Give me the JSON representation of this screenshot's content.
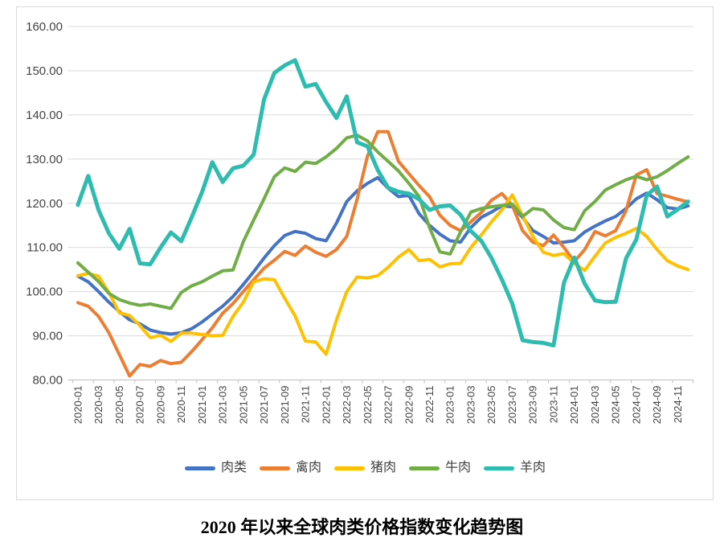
{
  "title": {
    "text": "2020 年以来全球肉类价格指数变化趋势图"
  },
  "axis_colors": {
    "gridline": "#d9d9d9",
    "axis_line": "#bfbfbf",
    "tick_label": "#444444"
  },
  "chart_data": {
    "type": "line",
    "title": "2020 年以来全球肉类价格指数变化趋势图",
    "xlabel": "",
    "ylabel": "",
    "ylim": [
      80,
      160
    ],
    "y_tick_step": 10,
    "y_tick_labels": [
      "80.00",
      "90.00",
      "100.00",
      "110.00",
      "120.00",
      "130.00",
      "140.00",
      "150.00",
      "160.00"
    ],
    "grid": true,
    "legend_position": "bottom",
    "x_label_every": 2,
    "categories": [
      "2020-01",
      "2020-02",
      "2020-03",
      "2020-04",
      "2020-05",
      "2020-06",
      "2020-07",
      "2020-08",
      "2020-09",
      "2020-10",
      "2020-11",
      "2020-12",
      "2021-01",
      "2021-02",
      "2021-03",
      "2021-04",
      "2021-05",
      "2021-06",
      "2021-07",
      "2021-08",
      "2021-09",
      "2021-10",
      "2021-11",
      "2021-12",
      "2022-01",
      "2022-02",
      "2022-03",
      "2022-04",
      "2022-05",
      "2022-06",
      "2022-07",
      "2022-08",
      "2022-09",
      "2022-10",
      "2022-11",
      "2022-12",
      "2023-01",
      "2023-02",
      "2023-03",
      "2023-04",
      "2023-05",
      "2023-06",
      "2023-07",
      "2023-08",
      "2023-09",
      "2023-10",
      "2023-11",
      "2023-12",
      "2024-01",
      "2024-02",
      "2024-03",
      "2024-04",
      "2024-05",
      "2024-06",
      "2024-07",
      "2024-08",
      "2024-09",
      "2024-10",
      "2024-11",
      "2024-12"
    ],
    "series": [
      {
        "name": "肉类",
        "color": "#4472c4",
        "stroke_width": 4,
        "values": [
          103.5,
          102.2,
          100.0,
          97.6,
          95.5,
          93.6,
          92.7,
          91.3,
          90.7,
          90.4,
          90.7,
          91.6,
          93.1,
          94.9,
          96.7,
          98.9,
          101.6,
          104.5,
          107.6,
          110.4,
          112.7,
          113.6,
          113.2,
          112.0,
          111.5,
          115.5,
          120.4,
          122.8,
          124.5,
          125.8,
          123.4,
          121.5,
          121.8,
          117.6,
          115.0,
          113.0,
          111.5,
          111.2,
          114.5,
          116.8,
          118.0,
          119.4,
          119.2,
          116.8,
          113.8,
          112.5,
          111.0,
          111.2,
          111.5,
          113.5,
          114.8,
          116.0,
          117.0,
          118.8,
          121.0,
          122.3,
          120.8,
          119.0,
          118.7,
          119.4
        ]
      },
      {
        "name": "禽肉",
        "color": "#ed7d31",
        "stroke_width": 4,
        "values": [
          97.5,
          96.7,
          94.4,
          90.7,
          85.8,
          80.9,
          83.5,
          83.1,
          84.4,
          83.7,
          84.0,
          86.4,
          89.1,
          91.8,
          95.1,
          97.3,
          100.0,
          102.7,
          105.3,
          107.1,
          109.1,
          108.2,
          110.3,
          108.9,
          108.0,
          109.5,
          112.5,
          120.9,
          130.7,
          136.2,
          136.2,
          129.5,
          126.7,
          124.0,
          121.5,
          117.3,
          115.0,
          113.8,
          115.8,
          117.9,
          120.7,
          122.2,
          119.5,
          113.8,
          111.2,
          110.4,
          112.8,
          110.0,
          106.8,
          109.5,
          113.6,
          112.6,
          113.8,
          118.3,
          126.4,
          127.6,
          122.2,
          121.6,
          120.9,
          120.3
        ]
      },
      {
        "name": "猪肉",
        "color": "#ffc000",
        "stroke_width": 4,
        "values": [
          103.6,
          104.1,
          103.5,
          99.8,
          95.2,
          94.6,
          92.3,
          89.6,
          90.1,
          88.7,
          90.6,
          90.6,
          90.3,
          90.0,
          90.1,
          94.4,
          97.6,
          102.2,
          102.9,
          102.7,
          98.5,
          94.5,
          88.8,
          88.6,
          85.8,
          93.6,
          100.0,
          103.3,
          103.1,
          103.6,
          105.5,
          107.8,
          109.5,
          107.0,
          107.3,
          105.6,
          106.3,
          106.4,
          110.0,
          112.8,
          115.8,
          118.5,
          121.9,
          117.2,
          112.5,
          108.9,
          108.2,
          108.6,
          106.4,
          104.8,
          108.0,
          111.0,
          112.3,
          113.2,
          114.3,
          112.5,
          109.5,
          107.0,
          105.8,
          105.0
        ]
      },
      {
        "name": "牛肉",
        "color": "#70ad47",
        "stroke_width": 4,
        "values": [
          106.5,
          104.4,
          102.3,
          99.6,
          98.2,
          97.4,
          96.9,
          97.2,
          96.7,
          96.2,
          99.8,
          101.3,
          102.2,
          103.5,
          104.7,
          104.9,
          111.3,
          116.2,
          121.0,
          126.0,
          128.0,
          127.2,
          129.3,
          129.0,
          130.5,
          132.4,
          134.8,
          135.4,
          134.1,
          131.6,
          129.5,
          127.3,
          124.5,
          121.5,
          114.5,
          109.0,
          108.5,
          113.5,
          118.0,
          118.8,
          119.2,
          119.5,
          119.8,
          117.0,
          118.8,
          118.5,
          116.2,
          114.5,
          114.0,
          118.3,
          120.4,
          123.0,
          124.2,
          125.3,
          126.1,
          125.3,
          126.0,
          127.4,
          129.0,
          130.5
        ]
      },
      {
        "name": "羊肉",
        "color": "#2fbcb0",
        "stroke_width": 5,
        "values": [
          119.6,
          126.2,
          118.5,
          113.2,
          109.7,
          114.2,
          106.4,
          106.2,
          110.0,
          113.4,
          111.4,
          116.8,
          122.5,
          129.3,
          124.8,
          127.9,
          128.5,
          131.0,
          143.5,
          149.5,
          151.2,
          152.4,
          146.4,
          147.0,
          142.9,
          139.3,
          144.2,
          133.8,
          132.9,
          127.5,
          123.5,
          122.6,
          122.2,
          120.9,
          118.5,
          119.3,
          119.5,
          117.4,
          113.7,
          111.5,
          107.6,
          102.7,
          97.3,
          89.0,
          88.6,
          88.4,
          87.8,
          102.0,
          107.7,
          101.8,
          98.0,
          97.6,
          97.7,
          107.5,
          111.8,
          121.8,
          123.8,
          117.0,
          118.6,
          120.4
        ]
      }
    ]
  }
}
